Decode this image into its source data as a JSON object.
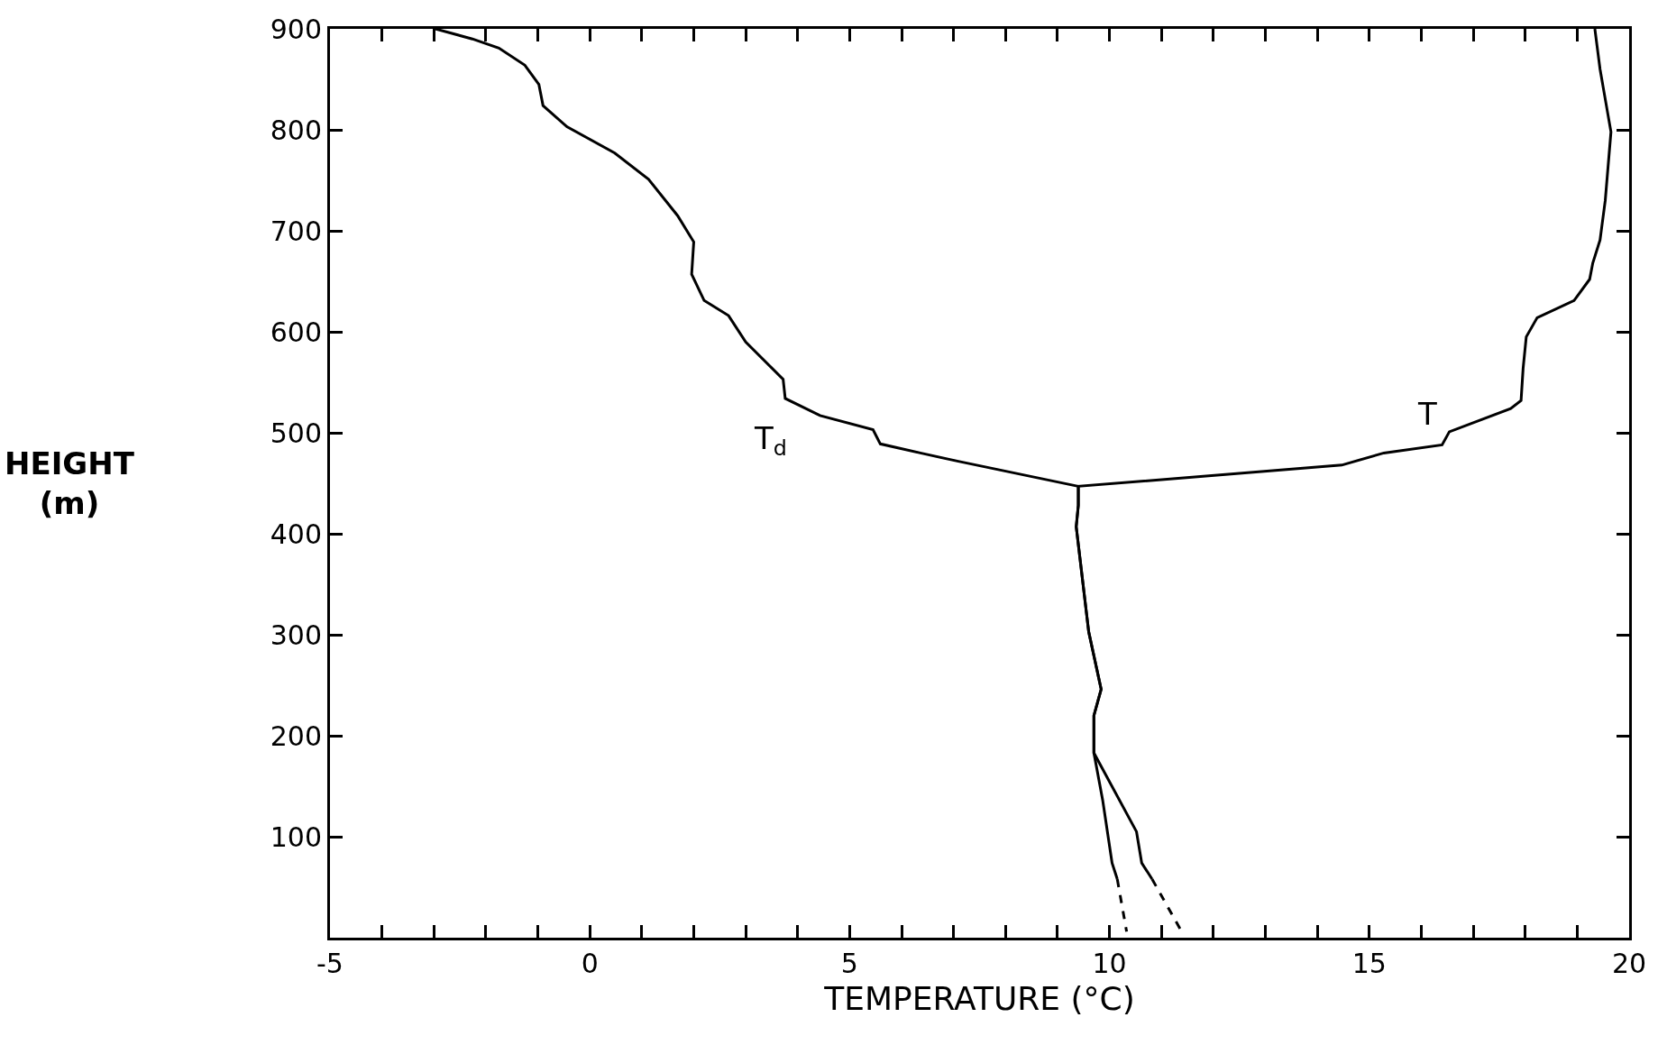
{
  "chart_data": {
    "type": "line",
    "xlabel": "TEMPERATURE (°C)",
    "ylabel": "HEIGHT\n(m)",
    "xlim": [
      -5,
      20
    ],
    "ylim": [
      0,
      900
    ],
    "xticks": [
      -5,
      {
        "value": -4,
        "label": null
      },
      {
        "value": -3,
        "label": null
      },
      {
        "value": -2,
        "label": null
      },
      {
        "value": -1,
        "label": null
      },
      0,
      {
        "value": 1,
        "label": null
      },
      {
        "value": 2,
        "label": null
      },
      {
        "value": 3,
        "label": null
      },
      {
        "value": 4,
        "label": null
      },
      5,
      {
        "value": 6,
        "label": null
      },
      {
        "value": 7,
        "label": null
      },
      {
        "value": 8,
        "label": null
      },
      {
        "value": 9,
        "label": null
      },
      10,
      {
        "value": 11,
        "label": null
      },
      {
        "value": 12,
        "label": null
      },
      {
        "value": 13,
        "label": null
      },
      {
        "value": 14,
        "label": null
      },
      15,
      {
        "value": 16,
        "label": null
      },
      {
        "value": 17,
        "label": null
      },
      {
        "value": 18,
        "label": null
      },
      {
        "value": 19,
        "label": null
      },
      20
    ],
    "yticks": [
      100,
      200,
      300,
      400,
      500,
      600,
      700,
      800,
      900
    ],
    "legend": false,
    "marker": "none",
    "series": [
      {
        "name": "T$_{d}$",
        "color": "#000000",
        "line_style": "solid",
        "x": [
          -2.97,
          -2.26,
          -1.75,
          -1.25,
          -0.98,
          -0.9,
          -0.44,
          0.48,
          1.13,
          1.69,
          2.0,
          1.96,
          2.2,
          2.67,
          3.0,
          3.72,
          3.76,
          4.43,
          5.45,
          5.59,
          6.36,
          7.07,
          9.4,
          9.4,
          9.36,
          9.6,
          9.84,
          9.7,
          9.7,
          9.87,
          10.05,
          10.15
        ],
        "values": [
          900,
          890,
          881,
          864,
          845,
          824,
          803,
          777,
          751,
          715,
          689,
          657,
          631,
          616,
          590,
          553,
          534,
          517,
          503,
          489,
          480,
          472,
          447,
          428,
          407,
          303,
          246,
          220,
          183,
          136,
          74,
          58
        ]
      },
      {
        "color": "#000000",
        "line_style": "dashed",
        "x": [
          10.15,
          10.33
        ],
        "values": [
          58,
          6
        ]
      },
      {
        "name": "T",
        "color": "#000000",
        "line_style": "solid",
        "x": [
          19.34,
          19.44,
          19.65,
          19.54,
          19.44,
          19.3,
          19.24,
          18.94,
          18.23,
          18.02,
          17.96,
          17.92,
          17.72,
          16.54,
          16.4,
          15.28,
          14.47,
          9.4,
          9.4,
          9.36,
          9.6,
          9.84,
          9.7,
          9.7,
          10.52,
          10.62,
          10.82
        ],
        "values": [
          900,
          860,
          798,
          730,
          691,
          668,
          652,
          631,
          614,
          595,
          564,
          532,
          524,
          501,
          488,
          480,
          468,
          447,
          428,
          407,
          303,
          246,
          220,
          183,
          105,
          74,
          58
        ]
      },
      {
        "color": "#000000",
        "line_style": "dashed",
        "x": [
          10.82,
          11.39
        ],
        "values": [
          58,
          6
        ]
      }
    ]
  }
}
